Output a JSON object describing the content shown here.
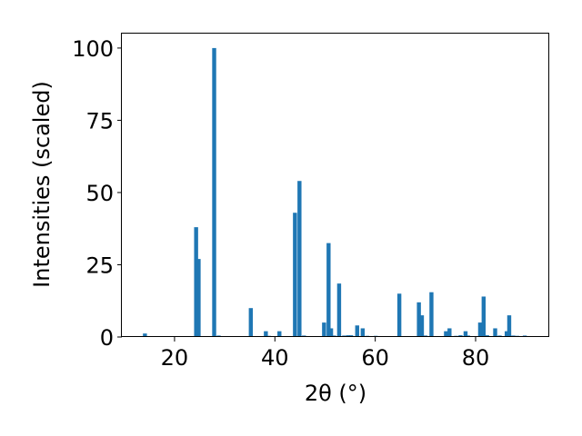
{
  "chart_data": {
    "type": "bar",
    "xlabel": "2θ (°)",
    "ylabel": "Intensities (scaled)",
    "xlim": [
      9.5,
      94.5
    ],
    "ylim": [
      0,
      105
    ],
    "xticks": [
      20,
      40,
      60,
      80
    ],
    "yticks": [
      0,
      25,
      50,
      75,
      100
    ],
    "bar_width": 0.8,
    "color": "#1f77b4",
    "grid": false,
    "x": [
      14.1,
      24.3,
      24.8,
      27.9,
      28.8,
      35.2,
      38.2,
      38.8,
      40.9,
      44.0,
      44.9,
      45.8,
      49.8,
      50.7,
      51.2,
      51.8,
      52.8,
      53.8,
      54.6,
      55.2,
      56.4,
      57.5,
      58.4,
      59.5,
      60.1,
      64.8,
      65.6,
      66.8,
      68.7,
      69.3,
      70.0,
      71.2,
      74.1,
      74.8,
      76.1,
      77.0,
      78.0,
      78.5,
      80.9,
      81.6,
      82.3,
      83.9,
      84.8,
      86.2,
      86.7,
      87.5,
      88.3,
      89.8
    ],
    "values": [
      1.2,
      38.0,
      27.0,
      100.0,
      0.5,
      10.0,
      2.0,
      0.4,
      2.0,
      43.0,
      54.0,
      0.5,
      5.0,
      32.5,
      3.0,
      0.5,
      18.5,
      0.5,
      0.6,
      0.6,
      4.0,
      3.0,
      0.4,
      0.3,
      0.4,
      15.0,
      0.3,
      0.3,
      12.0,
      7.5,
      0.5,
      15.5,
      2.0,
      3.0,
      0.4,
      0.6,
      2.0,
      0.5,
      5.0,
      14.0,
      0.6,
      3.0,
      0.5,
      2.0,
      7.5,
      0.5,
      0.4,
      0.5
    ]
  }
}
